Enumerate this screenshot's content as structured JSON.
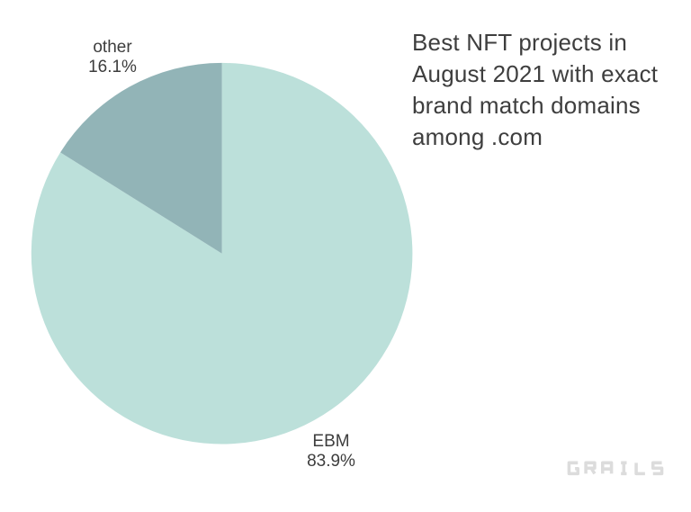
{
  "page": {
    "background": "#ffffff"
  },
  "header": {
    "title": "Best NFT projects in\nAugust 2021 with exact\nbrand match domains\namong .com"
  },
  "chart_data": {
    "type": "pie",
    "title": "Best NFT projects in August 2021 with exact brand match domains among .com",
    "slices": [
      {
        "label": "EBM",
        "value": 83.9,
        "pct_label": "83.9%",
        "color": "#bce0da"
      },
      {
        "label": "other",
        "value": 16.1,
        "pct_label": "16.1%",
        "color": "#92b4b7"
      }
    ],
    "start_angle_deg": 0,
    "direction": "clockwise",
    "legend": "none",
    "labels_position": "outside",
    "label_color": "#3d3d3d",
    "background": "#ffffff"
  },
  "logo": {
    "text": "GRAILS",
    "color": "#dcdcdc"
  },
  "colors": {
    "title_text": "#3e3e3e",
    "label_text": "#3d3d3d"
  }
}
